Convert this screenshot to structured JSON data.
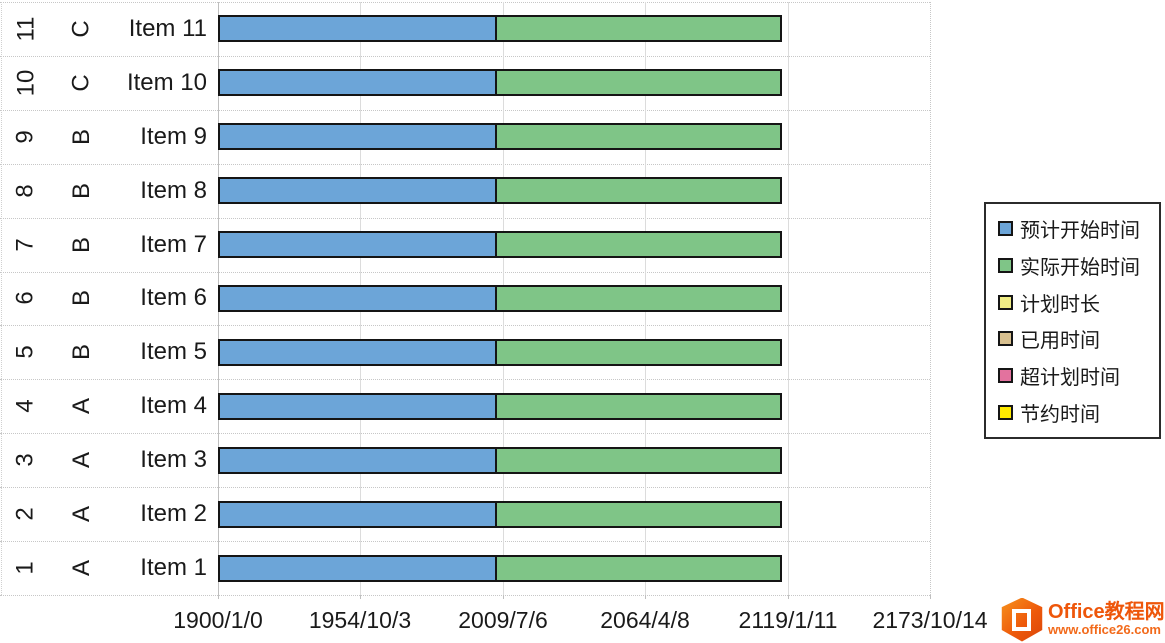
{
  "chart_data": {
    "type": "bar",
    "orientation": "horizontal",
    "stacked": true,
    "categories": [
      "Item 1",
      "Item 2",
      "Item 3",
      "Item 4",
      "Item 5",
      "Item 6",
      "Item 7",
      "Item 8",
      "Item 9",
      "Item 10",
      "Item 11"
    ],
    "category_groups": [
      "A",
      "A",
      "A",
      "A",
      "B",
      "B",
      "B",
      "B",
      "B",
      "C",
      "C"
    ],
    "category_indices": [
      "1",
      "2",
      "3",
      "4",
      "5",
      "6",
      "7",
      "8",
      "9",
      "10",
      "11"
    ],
    "series": [
      {
        "name": "预计开始时间",
        "color": "#6CA5D8",
        "values": [
          39200,
          39200,
          39200,
          39200,
          39200,
          39200,
          39200,
          39200,
          39200,
          39200,
          39200
        ]
      },
      {
        "name": "实际开始时间",
        "color": "#7FC587",
        "values": [
          40000,
          40000,
          40000,
          40000,
          40000,
          40000,
          40000,
          40000,
          40000,
          40000,
          40000
        ]
      },
      {
        "name": "计划时长",
        "color": "#F0ED85",
        "values": [
          0,
          0,
          0,
          0,
          0,
          0,
          0,
          0,
          0,
          0,
          0
        ]
      },
      {
        "name": "已用时间",
        "color": "#D8C08F",
        "values": [
          0,
          0,
          0,
          0,
          0,
          0,
          0,
          0,
          0,
          0,
          0
        ]
      },
      {
        "name": "超计划时间",
        "color": "#E3729E",
        "values": [
          0,
          0,
          0,
          0,
          0,
          0,
          0,
          0,
          0,
          0,
          0
        ]
      },
      {
        "name": "节约时间",
        "color": "#FFEB00",
        "values": [
          0,
          0,
          0,
          0,
          0,
          0,
          0,
          0,
          0,
          0,
          0
        ]
      }
    ],
    "series_keys": [
      "planned-start",
      "actual-start",
      "planned-duration",
      "elapsed-time",
      "over-plan-time",
      "saved-time"
    ],
    "xlim": [
      0,
      100000
    ],
    "x_tick_labels": [
      "1900/1/0",
      "1954/10/3",
      "2009/7/6",
      "2064/4/8",
      "2119/1/11",
      "2173/10/14"
    ],
    "grid": true,
    "legend_position": "right",
    "bar_border_color": "#151515"
  },
  "watermark": {
    "site_name": "Office教程网",
    "url": "www.office26.com",
    "brand_color": "#EE560A"
  }
}
